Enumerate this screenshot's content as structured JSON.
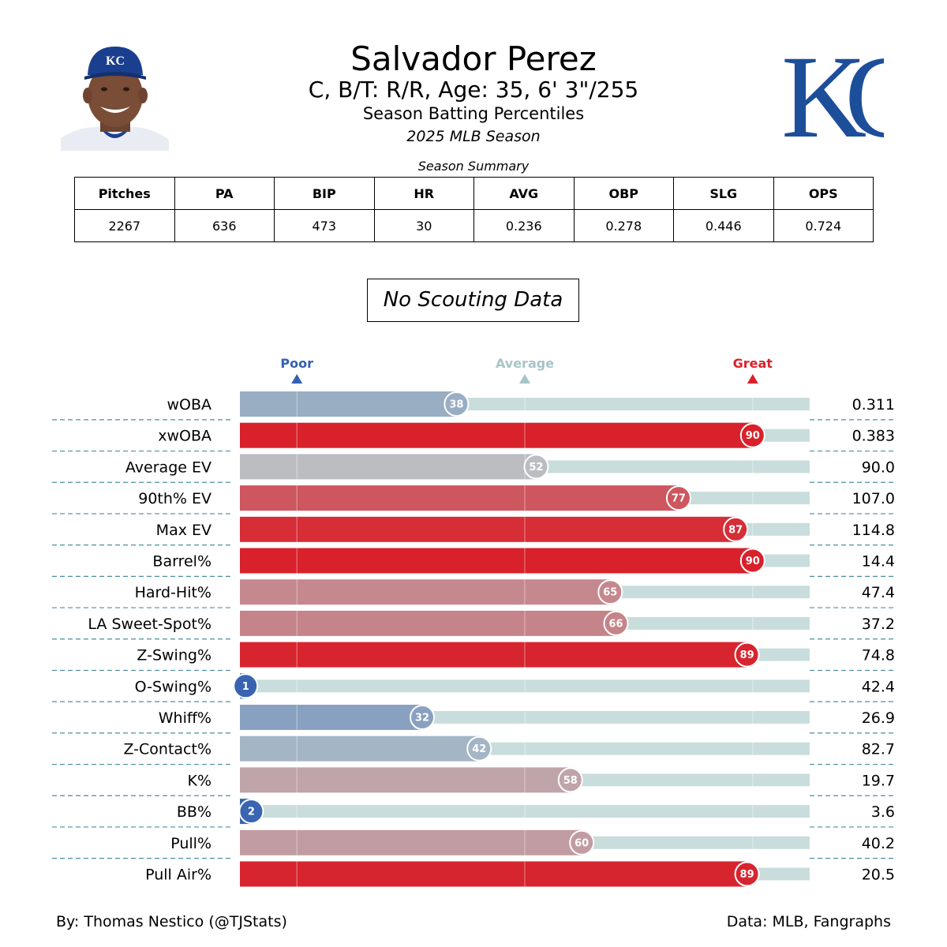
{
  "header": {
    "player_name": "Salvador Perez",
    "player_info": "C, B/T: R/R, Age: 35, 6' 3\"/255",
    "report_title": "Season Batting Percentiles",
    "season": "2025 MLB Season",
    "cap_logo_letters": "KC",
    "team_logo_letters": "KC"
  },
  "scouting_box": "No Scouting Data",
  "summary": {
    "caption": "Season Summary",
    "headers": [
      "Pitches",
      "PA",
      "BIP",
      "HR",
      "AVG",
      "OBP",
      "SLG",
      "OPS"
    ],
    "values": [
      "2267",
      "636",
      "473",
      "30",
      "0.236",
      "0.278",
      "0.446",
      "0.724"
    ]
  },
  "chart_data": {
    "type": "bar",
    "orientation": "horizontal",
    "scale_labels": [
      {
        "label": "Poor",
        "percentile": 10,
        "color": "#3461b0"
      },
      {
        "label": "Average",
        "percentile": 50,
        "color": "#a7c4c8"
      },
      {
        "label": "Great",
        "percentile": 90,
        "color": "#d8212b"
      }
    ],
    "xlim": [
      0,
      100
    ],
    "categories": [
      "wOBA",
      "xwOBA",
      "Average EV",
      "90th% EV",
      "Max EV",
      "Barrel%",
      "Hard-Hit%",
      "LA Sweet-Spot%",
      "Z-Swing%",
      "O-Swing%",
      "Whiff%",
      "Z-Contact%",
      "K%",
      "BB%",
      "Pull%",
      "Pull Air%"
    ],
    "percentiles": [
      38,
      90,
      52,
      77,
      87,
      90,
      65,
      66,
      89,
      1,
      32,
      42,
      58,
      2,
      60,
      89
    ],
    "stat_values": [
      "0.311",
      "0.383",
      "90.0",
      "107.0",
      "114.8",
      "14.4",
      "47.4",
      "37.2",
      "74.8",
      "42.4",
      "26.9",
      "82.7",
      "19.7",
      "3.6",
      "40.2",
      "20.5"
    ],
    "colors": {
      "poor": "#3461b0",
      "average": "#b9c5c9",
      "great": "#d8212b",
      "track": "#c9dddd",
      "separator": "#4a8fa0"
    }
  },
  "footer": {
    "credit": "By: Thomas Nestico (@TJStats)",
    "source": "Data: MLB, Fangraphs"
  }
}
